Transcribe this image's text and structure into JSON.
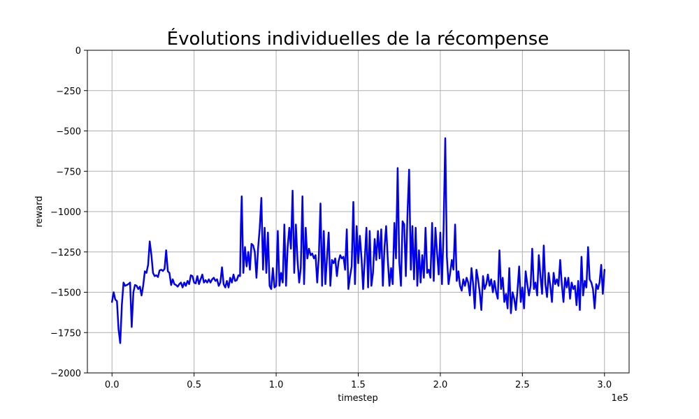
{
  "chart_data": {
    "type": "line",
    "title": "Évolutions individuelles de la récompense",
    "xlabel": "timestep",
    "ylabel": "reward",
    "x_offset_label": "1e5",
    "xlim": [
      -15000,
      315000
    ],
    "ylim": [
      -2000,
      0
    ],
    "x_ticks": [
      0,
      50000,
      100000,
      150000,
      200000,
      250000,
      300000
    ],
    "x_tick_labels": [
      "0.0",
      "0.5",
      "1.0",
      "1.5",
      "2.0",
      "2.5",
      "3.0"
    ],
    "y_ticks": [
      0,
      -250,
      -500,
      -750,
      -1000,
      -1250,
      -1500,
      -1750,
      -2000
    ],
    "y_tick_labels": [
      "0",
      "−250",
      "−500",
      "−750",
      "−1000",
      "−1250",
      "−1500",
      "−1750",
      "−2000"
    ],
    "grid": true,
    "line_color": "#0000ee",
    "series": [
      {
        "points": [
          [
            0,
            -1560
          ],
          [
            1000,
            -1500
          ],
          [
            2000,
            -1545
          ],
          [
            3000,
            -1555
          ],
          [
            4000,
            -1730
          ],
          [
            5000,
            -1815
          ],
          [
            6000,
            -1580
          ],
          [
            7000,
            -1440
          ],
          [
            8000,
            -1460
          ],
          [
            9000,
            -1455
          ],
          [
            10000,
            -1450
          ],
          [
            11000,
            -1440
          ],
          [
            12000,
            -1715
          ],
          [
            13000,
            -1500
          ],
          [
            14000,
            -1455
          ],
          [
            15000,
            -1460
          ],
          [
            16000,
            -1480
          ],
          [
            17000,
            -1465
          ],
          [
            18000,
            -1520
          ],
          [
            19000,
            -1460
          ],
          [
            20000,
            -1370
          ],
          [
            21000,
            -1380
          ],
          [
            22000,
            -1330
          ],
          [
            23000,
            -1185
          ],
          [
            24000,
            -1270
          ],
          [
            25000,
            -1380
          ],
          [
            26000,
            -1400
          ],
          [
            27000,
            -1395
          ],
          [
            28000,
            -1405
          ],
          [
            29000,
            -1365
          ],
          [
            30000,
            -1360
          ],
          [
            31000,
            -1368
          ],
          [
            32000,
            -1355
          ],
          [
            33000,
            -1240
          ],
          [
            34000,
            -1370
          ],
          [
            35000,
            -1380
          ],
          [
            36000,
            -1455
          ],
          [
            37000,
            -1420
          ],
          [
            38000,
            -1450
          ],
          [
            39000,
            -1455
          ],
          [
            40000,
            -1465
          ],
          [
            41000,
            -1450
          ],
          [
            42000,
            -1440
          ],
          [
            43000,
            -1470
          ],
          [
            44000,
            -1440
          ],
          [
            45000,
            -1460
          ],
          [
            46000,
            -1430
          ],
          [
            47000,
            -1450
          ],
          [
            48000,
            -1395
          ],
          [
            49000,
            -1400
          ],
          [
            50000,
            -1440
          ],
          [
            51000,
            -1445
          ],
          [
            52000,
            -1400
          ],
          [
            53000,
            -1450
          ],
          [
            54000,
            -1420
          ],
          [
            55000,
            -1390
          ],
          [
            56000,
            -1440
          ],
          [
            57000,
            -1425
          ],
          [
            58000,
            -1440
          ],
          [
            59000,
            -1420
          ],
          [
            60000,
            -1440
          ],
          [
            61000,
            -1420
          ],
          [
            62000,
            -1410
          ],
          [
            63000,
            -1430
          ],
          [
            64000,
            -1420
          ],
          [
            65000,
            -1460
          ],
          [
            66000,
            -1440
          ],
          [
            67000,
            -1345
          ],
          [
            68000,
            -1450
          ],
          [
            69000,
            -1470
          ],
          [
            70000,
            -1430
          ],
          [
            71000,
            -1470
          ],
          [
            72000,
            -1410
          ],
          [
            73000,
            -1440
          ],
          [
            74000,
            -1390
          ],
          [
            75000,
            -1430
          ],
          [
            76000,
            -1425
          ],
          [
            77000,
            -1395
          ],
          [
            78000,
            -1400
          ],
          [
            78500,
            -1090
          ],
          [
            79000,
            -905
          ],
          [
            80000,
            -1380
          ],
          [
            81000,
            -1220
          ],
          [
            82000,
            -1340
          ],
          [
            83000,
            -1250
          ],
          [
            84000,
            -1360
          ],
          [
            85000,
            -1200
          ],
          [
            86000,
            -1210
          ],
          [
            87000,
            -1250
          ],
          [
            88000,
            -1410
          ],
          [
            89000,
            -1230
          ],
          [
            90000,
            -1100
          ],
          [
            91000,
            -915
          ],
          [
            92000,
            -1360
          ],
          [
            93000,
            -1100
          ],
          [
            94000,
            -1380
          ],
          [
            95000,
            -1130
          ],
          [
            96000,
            -1460
          ],
          [
            97000,
            -1480
          ],
          [
            98000,
            -1350
          ],
          [
            99000,
            -1470
          ],
          [
            100000,
            -1460
          ],
          [
            101000,
            -1120
          ],
          [
            102000,
            -1460
          ],
          [
            103000,
            -1380
          ],
          [
            104000,
            -1440
          ],
          [
            105000,
            -1080
          ],
          [
            106000,
            -1460
          ],
          [
            107000,
            -1220
          ],
          [
            108000,
            -1100
          ],
          [
            109000,
            -1230
          ],
          [
            110000,
            -870
          ],
          [
            111000,
            -1380
          ],
          [
            112000,
            -1080
          ],
          [
            113000,
            -1300
          ],
          [
            114000,
            -1440
          ],
          [
            115000,
            -1350
          ],
          [
            116000,
            -905
          ],
          [
            117000,
            -1450
          ],
          [
            118000,
            -1100
          ],
          [
            119000,
            -1290
          ],
          [
            120000,
            -1230
          ],
          [
            121000,
            -1270
          ],
          [
            122000,
            -1260
          ],
          [
            123000,
            -1290
          ],
          [
            124000,
            -1270
          ],
          [
            125000,
            -1440
          ],
          [
            126000,
            -1280
          ],
          [
            127000,
            -950
          ],
          [
            128000,
            -1460
          ],
          [
            129000,
            -1120
          ],
          [
            130000,
            -1450
          ],
          [
            131000,
            -1280
          ],
          [
            132000,
            -1130
          ],
          [
            133000,
            -1460
          ],
          [
            134000,
            -1300
          ],
          [
            135000,
            -1320
          ],
          [
            136000,
            -1290
          ],
          [
            137000,
            -1400
          ],
          [
            138000,
            -1310
          ],
          [
            139000,
            -1270
          ],
          [
            140000,
            -1290
          ],
          [
            141000,
            -1280
          ],
          [
            142000,
            -1360
          ],
          [
            143000,
            -1110
          ],
          [
            144000,
            -1480
          ],
          [
            145000,
            -1400
          ],
          [
            146000,
            -1340
          ],
          [
            147000,
            -940
          ],
          [
            148000,
            -1450
          ],
          [
            149000,
            -1090
          ],
          [
            150000,
            -1320
          ],
          [
            151000,
            -1150
          ],
          [
            152000,
            -1290
          ],
          [
            153000,
            -1480
          ],
          [
            154000,
            -1290
          ],
          [
            155000,
            -1100
          ],
          [
            156000,
            -1470
          ],
          [
            157000,
            -1120
          ],
          [
            158000,
            -1460
          ],
          [
            159000,
            -1380
          ],
          [
            160000,
            -1170
          ],
          [
            161000,
            -1300
          ],
          [
            162000,
            -1120
          ],
          [
            163000,
            -1290
          ],
          [
            164000,
            -1110
          ],
          [
            165000,
            -1460
          ],
          [
            166000,
            -1220
          ],
          [
            167000,
            -1090
          ],
          [
            168000,
            -1300
          ],
          [
            169000,
            -1460
          ],
          [
            170000,
            -1350
          ],
          [
            171000,
            -1450
          ],
          [
            172000,
            -1070
          ],
          [
            173000,
            -1290
          ],
          [
            174000,
            -730
          ],
          [
            175000,
            -1310
          ],
          [
            176000,
            -1460
          ],
          [
            177000,
            -1060
          ],
          [
            178000,
            -1080
          ],
          [
            179000,
            -1400
          ],
          [
            180000,
            -1010
          ],
          [
            181000,
            -740
          ],
          [
            182000,
            -1360
          ],
          [
            183000,
            -1090
          ],
          [
            184000,
            -1420
          ],
          [
            185000,
            -1100
          ],
          [
            186000,
            -1460
          ],
          [
            187000,
            -1240
          ],
          [
            188000,
            -1440
          ],
          [
            189000,
            -1270
          ],
          [
            190000,
            -1410
          ],
          [
            191000,
            -1100
          ],
          [
            192000,
            -1380
          ],
          [
            193000,
            -1360
          ],
          [
            194000,
            -1410
          ],
          [
            195000,
            -1070
          ],
          [
            196000,
            -1430
          ],
          [
            197000,
            -1100
          ],
          [
            198000,
            -1250
          ],
          [
            199000,
            -1390
          ],
          [
            200000,
            -1130
          ],
          [
            201000,
            -1450
          ],
          [
            202000,
            -1110
          ],
          [
            203000,
            -545
          ],
          [
            204000,
            -1280
          ],
          [
            205000,
            -1450
          ],
          [
            206000,
            -1380
          ],
          [
            207000,
            -1300
          ],
          [
            208000,
            -1360
          ],
          [
            209000,
            -1080
          ],
          [
            210000,
            -1430
          ],
          [
            211000,
            -1370
          ],
          [
            212000,
            -1460
          ],
          [
            213000,
            -1490
          ],
          [
            214000,
            -1420
          ],
          [
            215000,
            -1460
          ],
          [
            216000,
            -1410
          ],
          [
            217000,
            -1440
          ],
          [
            218000,
            -1520
          ],
          [
            219000,
            -1350
          ],
          [
            220000,
            -1450
          ],
          [
            221000,
            -1600
          ],
          [
            222000,
            -1360
          ],
          [
            223000,
            -1420
          ],
          [
            224000,
            -1500
          ],
          [
            225000,
            -1610
          ],
          [
            226000,
            -1400
          ],
          [
            227000,
            -1480
          ],
          [
            228000,
            -1450
          ],
          [
            229000,
            -1390
          ],
          [
            230000,
            -1460
          ],
          [
            231000,
            -1420
          ],
          [
            232000,
            -1500
          ],
          [
            233000,
            -1430
          ],
          [
            234000,
            -1500
          ],
          [
            235000,
            -1540
          ],
          [
            236000,
            -1240
          ],
          [
            237000,
            -1480
          ],
          [
            238000,
            -1410
          ],
          [
            239000,
            -1560
          ],
          [
            240000,
            -1510
          ],
          [
            241000,
            -1600
          ],
          [
            242000,
            -1350
          ],
          [
            243000,
            -1630
          ],
          [
            244000,
            -1500
          ],
          [
            245000,
            -1540
          ],
          [
            246000,
            -1610
          ],
          [
            247000,
            -1490
          ],
          [
            248000,
            -1340
          ],
          [
            249000,
            -1560
          ],
          [
            250000,
            -1470
          ],
          [
            251000,
            -1600
          ],
          [
            252000,
            -1370
          ],
          [
            253000,
            -1450
          ],
          [
            254000,
            -1520
          ],
          [
            255000,
            -1460
          ],
          [
            256000,
            -1230
          ],
          [
            257000,
            -1480
          ],
          [
            258000,
            -1440
          ],
          [
            259000,
            -1520
          ],
          [
            260000,
            -1270
          ],
          [
            261000,
            -1400
          ],
          [
            262000,
            -1510
          ],
          [
            263000,
            -1210
          ],
          [
            264000,
            -1450
          ],
          [
            265000,
            -1530
          ],
          [
            266000,
            -1380
          ],
          [
            267000,
            -1460
          ],
          [
            268000,
            -1560
          ],
          [
            269000,
            -1380
          ],
          [
            270000,
            -1450
          ],
          [
            271000,
            -1420
          ],
          [
            272000,
            -1460
          ],
          [
            273000,
            -1300
          ],
          [
            274000,
            -1450
          ],
          [
            275000,
            -1560
          ],
          [
            276000,
            -1410
          ],
          [
            277000,
            -1470
          ],
          [
            278000,
            -1410
          ],
          [
            279000,
            -1540
          ],
          [
            280000,
            -1440
          ],
          [
            281000,
            -1480
          ],
          [
            282000,
            -1460
          ],
          [
            283000,
            -1580
          ],
          [
            284000,
            -1430
          ],
          [
            285000,
            -1610
          ],
          [
            286000,
            -1280
          ],
          [
            287000,
            -1520
          ],
          [
            288000,
            -1430
          ],
          [
            289000,
            -1470
          ],
          [
            290000,
            -1220
          ],
          [
            291000,
            -1420
          ],
          [
            292000,
            -1440
          ],
          [
            293000,
            -1480
          ],
          [
            294000,
            -1600
          ],
          [
            295000,
            -1450
          ],
          [
            296000,
            -1480
          ],
          [
            297000,
            -1440
          ],
          [
            298000,
            -1330
          ],
          [
            299000,
            -1510
          ],
          [
            300000,
            -1360
          ]
        ]
      }
    ]
  }
}
